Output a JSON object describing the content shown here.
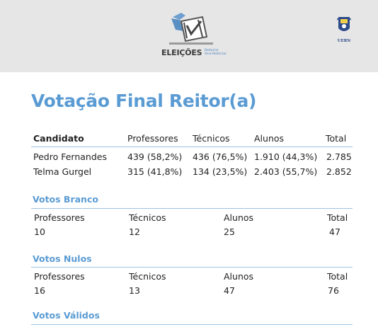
{
  "header": {
    "logo_text": "ELEIÇÕES",
    "logo_sub_line1": "Reitor(a)",
    "logo_sub_line2": "Vice-Reitor(a)",
    "crest_label": "UERN"
  },
  "title": "Votação Final Reitor(a)",
  "candidates_table": {
    "columns": [
      "Candidato",
      "Professores",
      "Técnicos",
      "Alunos",
      "Total"
    ],
    "rows": [
      [
        "Pedro Fernandes",
        "439 (58,2%)",
        "436 (76,5%)",
        "1.910 (44,3%)",
        "2.785"
      ],
      [
        "Telma Gurgel",
        "315 (41,8%)",
        "134 (23,5%)",
        "2.403 (55,7%)",
        "2.852"
      ]
    ]
  },
  "votos_branco": {
    "title": "Votos Branco",
    "labels": [
      "Professores",
      "Técnicos",
      "Alunos",
      "Total"
    ],
    "values": [
      "10",
      "12",
      "25",
      "47"
    ]
  },
  "votos_nulos": {
    "title": "Votos Nulos",
    "labels": [
      "Professores",
      "Técnicos",
      "Alunos",
      "Total"
    ],
    "values": [
      "16",
      "13",
      "47",
      "76"
    ]
  },
  "votos_validos": {
    "title": "Votos Válidos"
  },
  "colors": {
    "accent": "#5a9bd3",
    "header_bg": "#e6e6e6",
    "rule": "#9cc3e6"
  }
}
